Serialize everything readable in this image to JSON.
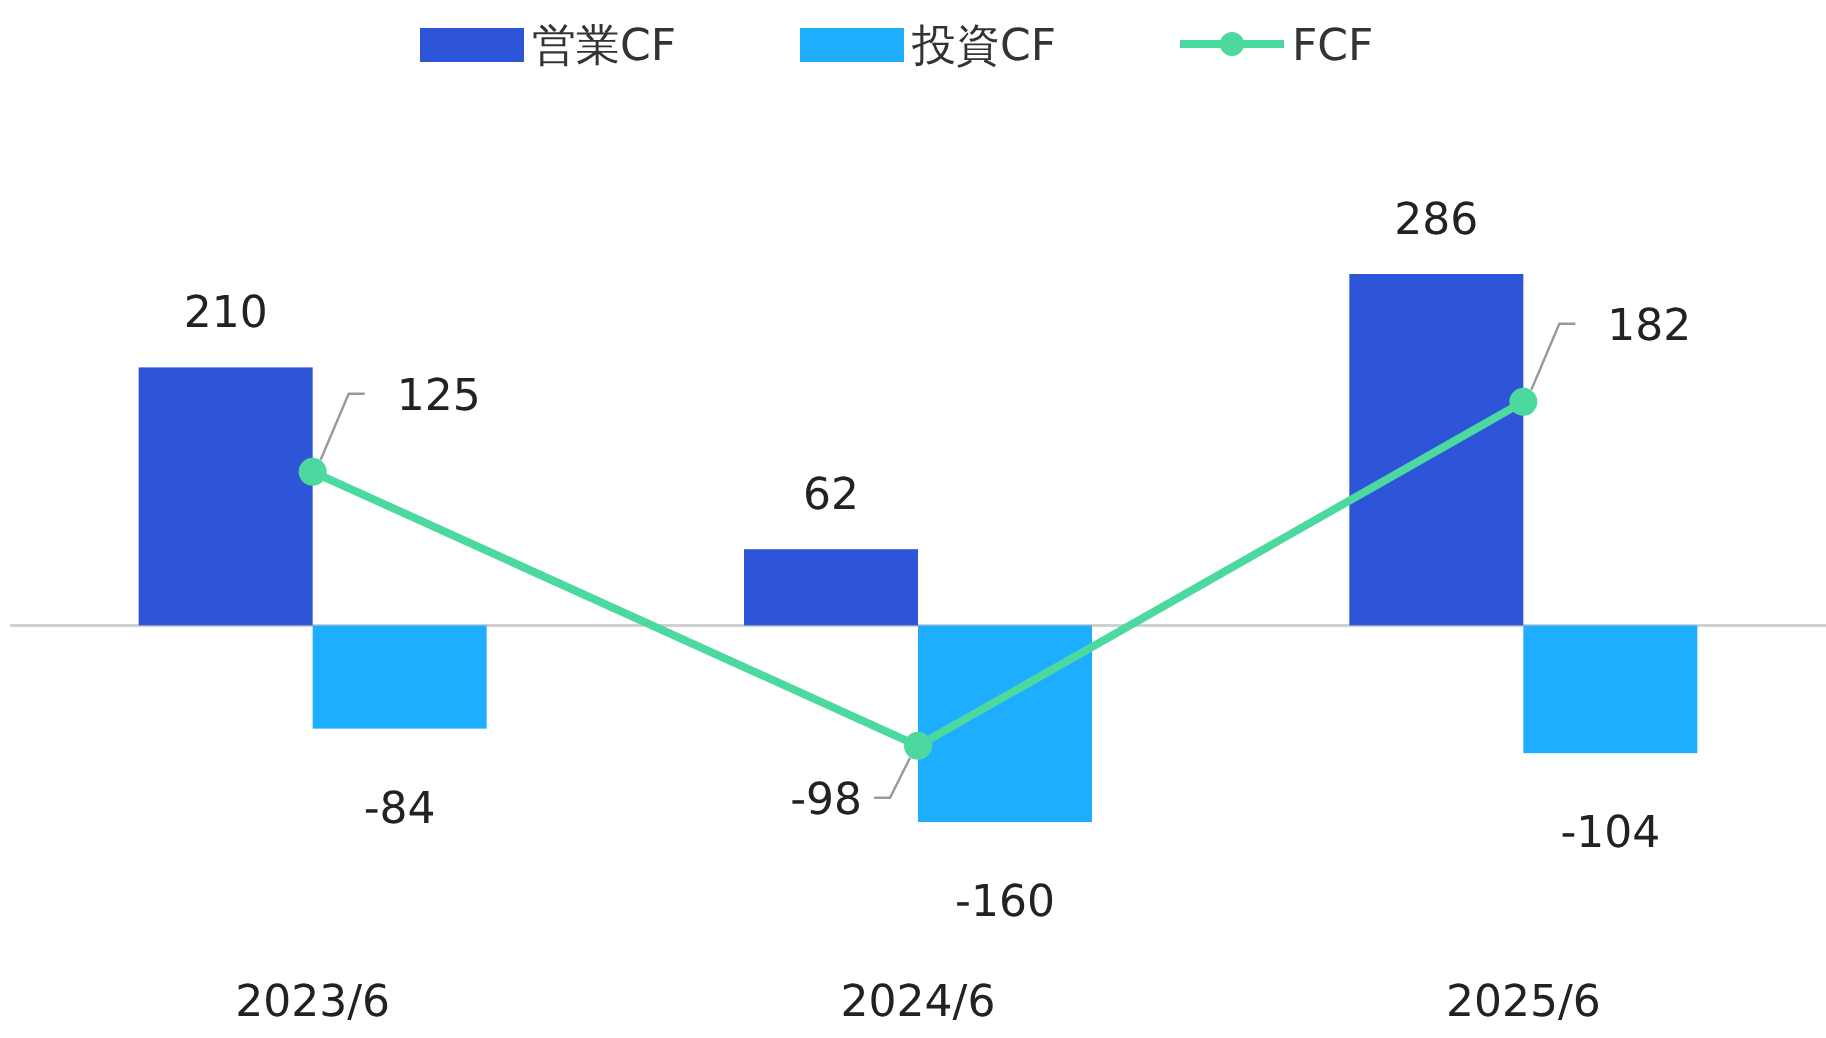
{
  "chart_data": {
    "type": "bar",
    "categories": [
      "2023/6",
      "2024/6",
      "2025/6"
    ],
    "series": [
      {
        "name": "営業CF",
        "color": "#2e54d8",
        "values": [
          210,
          62,
          286
        ]
      },
      {
        "name": "投資CF",
        "color": "#1fadff",
        "values": [
          -84,
          -160,
          -104
        ]
      },
      {
        "name": "FCF",
        "type": "line",
        "color": "#4cd9a0",
        "values": [
          125,
          -98,
          182
        ]
      }
    ],
    "data_labels": true,
    "legend": "top",
    "marker": "circle"
  }
}
